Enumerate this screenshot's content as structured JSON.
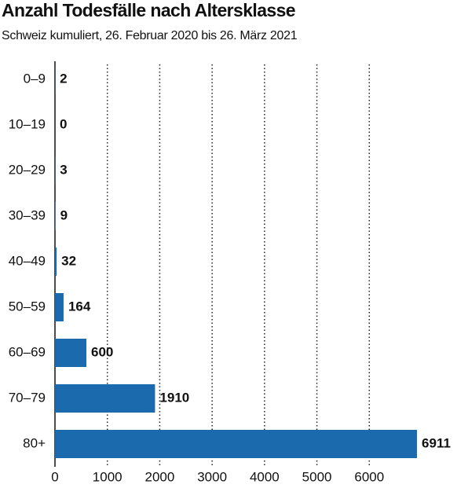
{
  "chart_data": {
    "type": "bar",
    "orientation": "horizontal",
    "title": "Anzahl Todesfälle nach Altersklasse",
    "subtitle": "Schweiz kumuliert, 26. Februar 2020 bis 26. März 2021",
    "categories": [
      "0–9",
      "10–19",
      "20–29",
      "30–39",
      "40–49",
      "50–59",
      "60–69",
      "70–79",
      "80+"
    ],
    "values": [
      2,
      0,
      3,
      9,
      32,
      164,
      600,
      1910,
      6911
    ],
    "color": "#1b6aae",
    "xlim": [
      0,
      7000
    ],
    "xticks": [
      0,
      1000,
      2000,
      3000,
      4000,
      5000,
      6000
    ],
    "grid": true
  }
}
